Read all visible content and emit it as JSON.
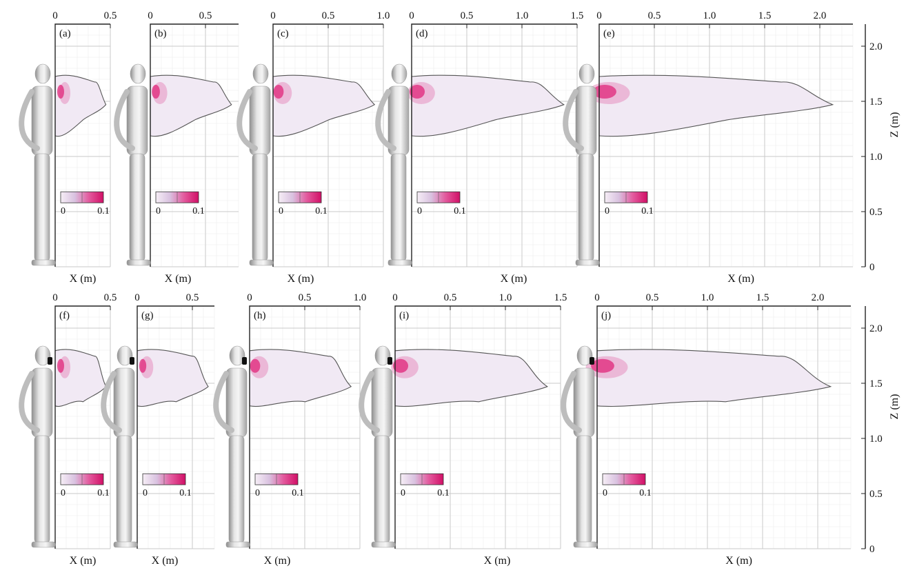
{
  "figure": {
    "x_axis_label": "X (m)",
    "z_axis_label": "Z (m)",
    "z_ticks": [
      "0",
      "0.5",
      "1.0",
      "1.5",
      "2.0"
    ],
    "z_range_m": [
      0,
      2.2
    ],
    "colorbar": {
      "min_label": "0",
      "max_label": "0.1",
      "min": 0,
      "max": 0.1,
      "colors": [
        "#f6eef6",
        "#d9c2e0",
        "#e35a9e",
        "#d10f66"
      ]
    },
    "rows": [
      {
        "row": "top",
        "mask_on_face": false,
        "panels": [
          {
            "label": "(a)",
            "x_max_m": 0.5,
            "x_ticks": [
              "0",
              "0.5"
            ]
          },
          {
            "label": "(b)",
            "x_max_m": 0.8,
            "x_ticks": [
              "0",
              "0.5"
            ]
          },
          {
            "label": "(c)",
            "x_max_m": 1.0,
            "x_ticks": [
              "0",
              "0.5",
              "1.0"
            ]
          },
          {
            "label": "(d)",
            "x_max_m": 1.5,
            "x_ticks": [
              "0",
              "0.5",
              "1.0",
              "1.5"
            ]
          },
          {
            "label": "(e)",
            "x_max_m": 2.3,
            "x_ticks": [
              "0",
              "0.5",
              "1.0",
              "1.5",
              "2.0"
            ]
          }
        ]
      },
      {
        "row": "bottom",
        "mask_on_face": true,
        "panels": [
          {
            "label": "(f)",
            "x_max_m": 0.5,
            "x_ticks": [
              "0",
              "0.5"
            ]
          },
          {
            "label": "(g)",
            "x_max_m": 0.7,
            "x_ticks": [
              "0",
              "0.5"
            ]
          },
          {
            "label": "(h)",
            "x_max_m": 1.0,
            "x_ticks": [
              "0",
              "0.5",
              "1.0"
            ]
          },
          {
            "label": "(i)",
            "x_max_m": 1.5,
            "x_ticks": [
              "0",
              "0.5",
              "1.0",
              "1.5"
            ]
          },
          {
            "label": "(j)",
            "x_max_m": 2.3,
            "x_ticks": [
              "0",
              "0.5",
              "1.0",
              "1.5",
              "2.0"
            ]
          }
        ]
      }
    ]
  }
}
